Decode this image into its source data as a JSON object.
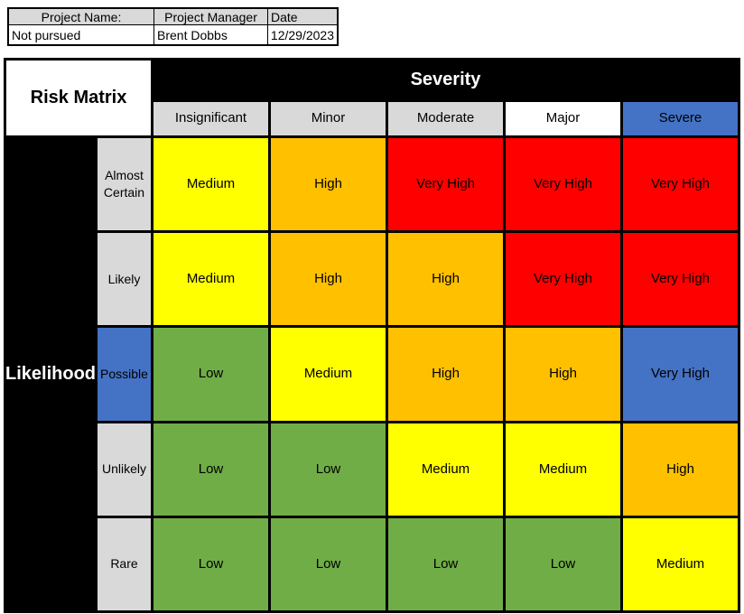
{
  "project_info": {
    "headers": [
      "Project Name:",
      "Project Manager",
      "Date"
    ],
    "values": [
      "Not pursued",
      "Brent Dobbs",
      "12/29/2023"
    ]
  },
  "matrix": {
    "title": "Risk Matrix",
    "severity_label": "Severity",
    "likelihood_label": "Likelihood",
    "severity_levels": [
      {
        "label": "Insignificant",
        "bg": "#d9d9d9"
      },
      {
        "label": "Minor",
        "bg": "#d9d9d9"
      },
      {
        "label": "Moderate",
        "bg": "#d9d9d9"
      },
      {
        "label": "Major",
        "bg": "#ffffff"
      },
      {
        "label": "Severe",
        "bg": "#4472c4"
      }
    ],
    "likelihood_levels": [
      {
        "label": "Almost Certain",
        "bg": "#d9d9d9"
      },
      {
        "label": "Likely",
        "bg": "#d9d9d9"
      },
      {
        "label": "Possible",
        "bg": "#4472c4"
      },
      {
        "label": "Unlikely",
        "bg": "#d9d9d9"
      },
      {
        "label": "Rare",
        "bg": "#d9d9d9"
      }
    ],
    "risk_colors": {
      "Low": "#70ad47",
      "Medium": "#ffff00",
      "High": "#ffc000",
      "Very High": "#ff0000",
      "selected": "#4472c4"
    },
    "cells": [
      [
        {
          "label": "Medium",
          "bg": "#ffff00"
        },
        {
          "label": "High",
          "bg": "#ffc000"
        },
        {
          "label": "Very High",
          "bg": "#ff0000"
        },
        {
          "label": "Very High",
          "bg": "#ff0000"
        },
        {
          "label": "Very High",
          "bg": "#ff0000"
        }
      ],
      [
        {
          "label": "Medium",
          "bg": "#ffff00"
        },
        {
          "label": "High",
          "bg": "#ffc000"
        },
        {
          "label": "High",
          "bg": "#ffc000"
        },
        {
          "label": "Very High",
          "bg": "#ff0000"
        },
        {
          "label": "Very High",
          "bg": "#ff0000"
        }
      ],
      [
        {
          "label": "Low",
          "bg": "#70ad47"
        },
        {
          "label": "Medium",
          "bg": "#ffff00"
        },
        {
          "label": "High",
          "bg": "#ffc000"
        },
        {
          "label": "High",
          "bg": "#ffc000"
        },
        {
          "label": "Very High",
          "bg": "#4472c4"
        }
      ],
      [
        {
          "label": "Low",
          "bg": "#70ad47"
        },
        {
          "label": "Low",
          "bg": "#70ad47"
        },
        {
          "label": "Medium",
          "bg": "#ffff00"
        },
        {
          "label": "Medium",
          "bg": "#ffff00"
        },
        {
          "label": "High",
          "bg": "#ffc000"
        }
      ],
      [
        {
          "label": "Low",
          "bg": "#70ad47"
        },
        {
          "label": "Low",
          "bg": "#70ad47"
        },
        {
          "label": "Low",
          "bg": "#70ad47"
        },
        {
          "label": "Low",
          "bg": "#70ad47"
        },
        {
          "label": "Medium",
          "bg": "#ffff00"
        }
      ]
    ]
  }
}
